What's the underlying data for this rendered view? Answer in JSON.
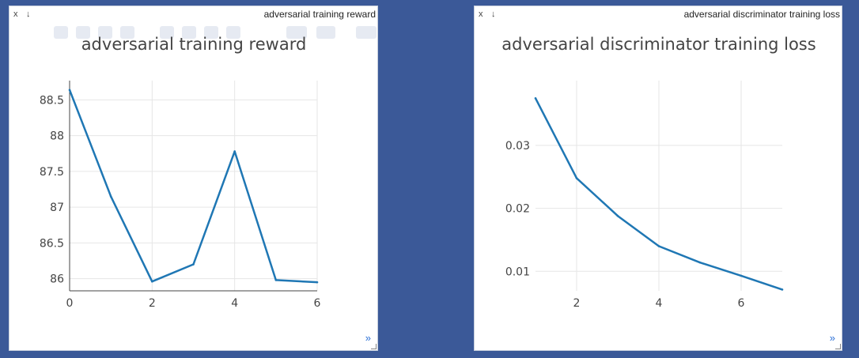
{
  "controls": {
    "close": "x",
    "download": "↓",
    "expand": "»"
  },
  "panels": [
    {
      "header_title": "adversarial training reward",
      "chart_data": {
        "type": "line",
        "title": "adversarial training reward",
        "xlabel": "",
        "ylabel": "",
        "x": [
          0,
          1,
          2,
          3,
          4,
          5,
          6
        ],
        "y": [
          88.64,
          87.15,
          85.96,
          86.2,
          87.78,
          85.98,
          85.95
        ],
        "xlim": [
          0,
          6
        ],
        "ylim": [
          85.83,
          88.77
        ],
        "xticks": [
          0,
          2,
          4,
          6
        ],
        "xtick_labels": [
          "0",
          "2",
          "4",
          "6"
        ],
        "yticks": [
          86,
          86.5,
          87,
          87.5,
          88,
          88.5
        ],
        "ytick_labels": [
          "86",
          "86.5",
          "87",
          "87.5",
          "88",
          "88.5"
        ],
        "grid": true,
        "line_color": "#1f77b4"
      }
    },
    {
      "header_title": "adversarial discriminator training loss",
      "chart_data": {
        "type": "line",
        "title": "adversarial discriminator training loss",
        "xlabel": "",
        "ylabel": "",
        "x": [
          1,
          2,
          3,
          4,
          5,
          6,
          7
        ],
        "y": [
          0.0375,
          0.0248,
          0.0188,
          0.014,
          0.0114,
          0.0093,
          0.0071
        ],
        "xlim": [
          1,
          7
        ],
        "ylim": [
          0.0069,
          0.0403
        ],
        "xticks": [
          2,
          4,
          6
        ],
        "xtick_labels": [
          "2",
          "4",
          "6"
        ],
        "yticks": [
          0.01,
          0.02,
          0.03
        ],
        "ytick_labels": [
          "0.01",
          "0.02",
          "0.03"
        ],
        "grid": true,
        "line_color": "#1f77b4"
      }
    }
  ]
}
